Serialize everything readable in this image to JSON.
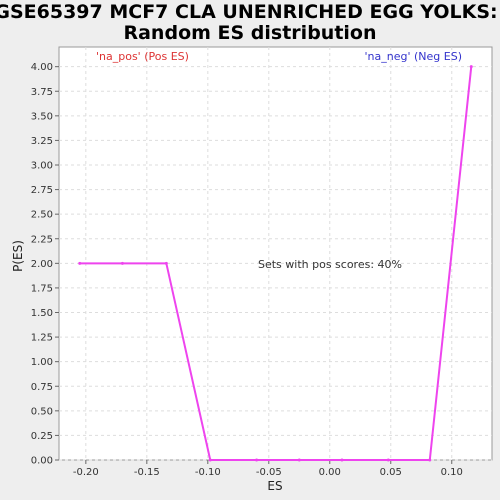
{
  "chart_data": {
    "type": "line",
    "title_line1": "GSE65397 MCF7 CLA UNENRICHED EGG YOLKS:",
    "title_line2": "Random ES distribution",
    "xlabel": "ES",
    "ylabel": "P(ES)",
    "xlim": [
      -0.222,
      0.133
    ],
    "ylim": [
      0,
      4.2
    ],
    "x_ticks": [
      -0.2,
      -0.15,
      -0.1,
      -0.05,
      0.0,
      0.05,
      0.1
    ],
    "x_tick_labels": [
      "-0.20",
      "-0.15",
      "-0.10",
      "-0.05",
      "0.00",
      "0.05",
      "0.10"
    ],
    "y_ticks": [
      0,
      0.25,
      0.5,
      0.75,
      1.0,
      1.25,
      1.5,
      1.75,
      2.0,
      2.25,
      2.5,
      2.75,
      3.0,
      3.25,
      3.5,
      3.75,
      4.0
    ],
    "y_tick_labels": [
      "0.00",
      "0.25",
      "0.50",
      "0.75",
      "1.00",
      "1.25",
      "1.50",
      "1.75",
      "2.00",
      "2.25",
      "2.50",
      "2.75",
      "3.00",
      "3.25",
      "3.50",
      "3.75",
      "4.00"
    ],
    "grid": true,
    "legend_pos": "'na_pos' (Pos ES)",
    "legend_neg": "'na_neg' (Neg ES)",
    "annotation": "Sets with pos scores: 40%",
    "colors": {
      "line": "#ee44ee",
      "pos": "#dd3333",
      "neg": "#3333cc",
      "grid": "#dddddd"
    },
    "series": [
      {
        "x": [
          -0.205,
          -0.17,
          -0.134,
          -0.098,
          -0.06,
          -0.025,
          0.01,
          0.048,
          0.082,
          0.116
        ],
        "y": [
          2.0,
          2.0,
          2.0,
          0.0,
          0.0,
          0.0,
          0.0,
          0.0,
          0.0,
          4.0
        ]
      }
    ]
  }
}
